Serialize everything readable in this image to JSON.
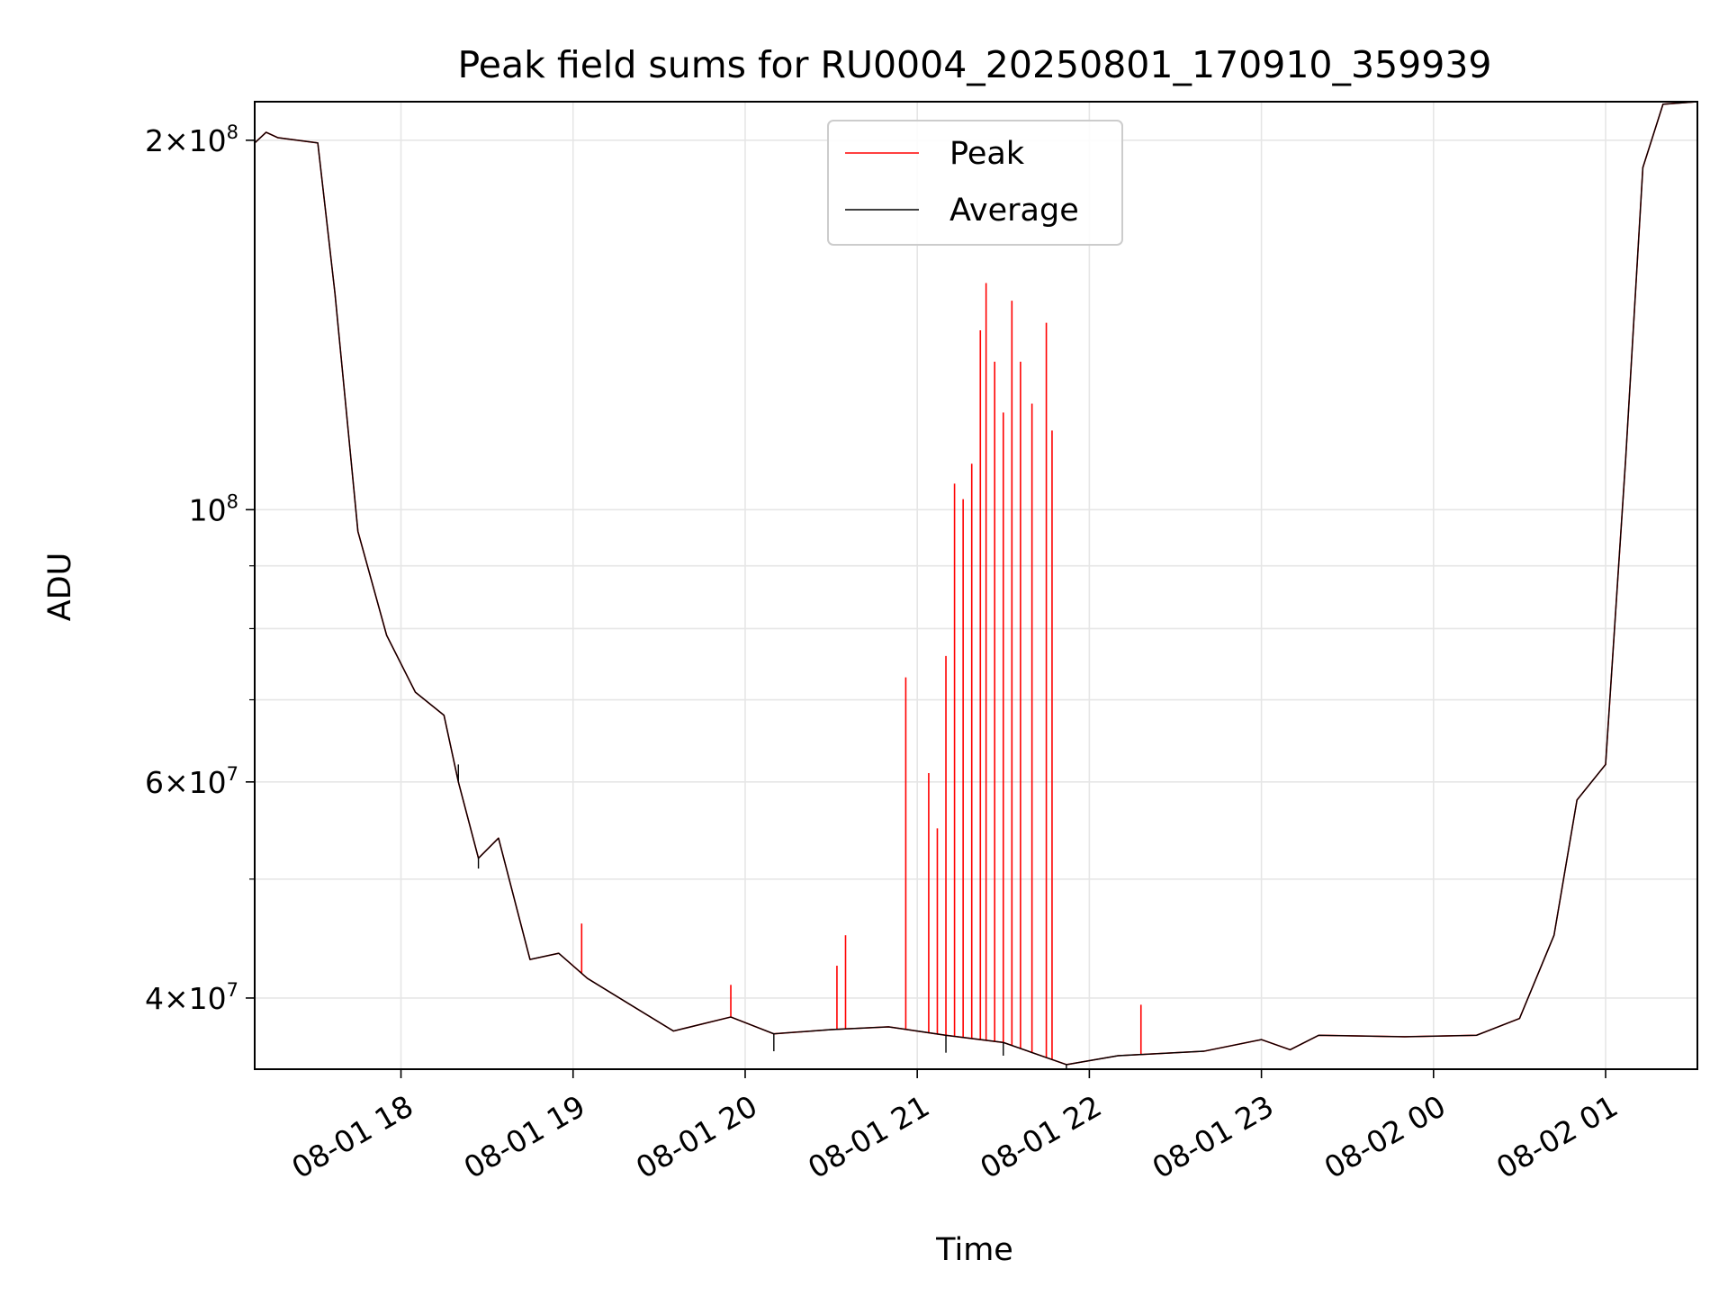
{
  "chart_data": {
    "type": "line",
    "title": "Peak field sums for RU0004_20250801_170910_359939",
    "xlabel": "Time",
    "ylabel": "ADU",
    "yscale": "log",
    "ylim": [
      35000000,
      215000000
    ],
    "xlim": [
      "2025-08-01 17:09",
      "2025-08-02 01:32"
    ],
    "grid": true,
    "legend_position": "upper center",
    "x_ticks": [
      "08-01 18",
      "08-01 19",
      "08-01 20",
      "08-01 21",
      "08-01 22",
      "08-01 23",
      "08-02 00",
      "08-02 01"
    ],
    "y_ticks": [
      {
        "value": 40000000,
        "label_mantissa": "4",
        "label_base": "10",
        "label_exp": "7"
      },
      {
        "value": 60000000,
        "label_mantissa": "6",
        "label_base": "10",
        "label_exp": "7"
      },
      {
        "value": 100000000,
        "label_mantissa": "",
        "label_base": "10",
        "label_exp": "8"
      },
      {
        "value": 200000000,
        "label_mantissa": "2",
        "label_base": "10",
        "label_exp": "8"
      }
    ],
    "series": [
      {
        "name": "Peak",
        "color": "#ff0000",
        "baseline": [
          [
            "2025-08-01 17:09",
            199000000
          ],
          [
            "2025-08-01 17:13",
            203000000
          ],
          [
            "2025-08-01 17:17",
            201000000
          ],
          [
            "2025-08-01 17:31",
            199000000
          ],
          [
            "2025-08-01 17:37",
            150000000
          ],
          [
            "2025-08-01 17:45",
            96000000
          ],
          [
            "2025-08-01 17:55",
            79000000
          ],
          [
            "2025-08-01 18:05",
            71000000
          ],
          [
            "2025-08-01 18:15",
            68000000
          ],
          [
            "2025-08-01 18:20",
            60000000
          ],
          [
            "2025-08-01 18:27",
            52000000
          ],
          [
            "2025-08-01 18:34",
            54000000
          ],
          [
            "2025-08-01 18:45",
            43000000
          ],
          [
            "2025-08-01 18:55",
            43500000
          ],
          [
            "2025-08-01 19:05",
            41500000
          ],
          [
            "2025-08-01 19:20",
            39500000
          ],
          [
            "2025-08-01 19:35",
            37600000
          ],
          [
            "2025-08-01 19:55",
            38600000
          ],
          [
            "2025-08-01 20:10",
            37400000
          ],
          [
            "2025-08-01 20:30",
            37700000
          ],
          [
            "2025-08-01 20:50",
            37900000
          ],
          [
            "2025-08-01 21:10",
            37300000
          ],
          [
            "2025-08-01 21:30",
            36800000
          ],
          [
            "2025-08-01 21:52",
            35300000
          ],
          [
            "2025-08-01 22:10",
            35900000
          ],
          [
            "2025-08-01 22:40",
            36200000
          ],
          [
            "2025-08-01 23:00",
            37000000
          ],
          [
            "2025-08-01 23:10",
            36300000
          ],
          [
            "2025-08-01 23:20",
            37300000
          ],
          [
            "2025-08-01 23:50",
            37200000
          ],
          [
            "2025-08-02 00:15",
            37300000
          ],
          [
            "2025-08-02 00:30",
            38500000
          ],
          [
            "2025-08-02 00:42",
            45000000
          ],
          [
            "2025-08-02 00:50",
            58000000
          ],
          [
            "2025-08-02 01:00",
            62000000
          ],
          [
            "2025-08-02 01:07",
            110000000
          ],
          [
            "2025-08-02 01:13",
            190000000
          ],
          [
            "2025-08-02 01:20",
            214000000
          ],
          [
            "2025-08-02 01:32",
            215000000
          ]
        ],
        "spikes": [
          [
            "2025-08-01 19:03",
            46000000
          ],
          [
            "2025-08-01 19:55",
            41000000
          ],
          [
            "2025-08-01 20:32",
            42500000
          ],
          [
            "2025-08-01 20:35",
            45000000
          ],
          [
            "2025-08-01 20:56",
            73000000
          ],
          [
            "2025-08-01 21:04",
            61000000
          ],
          [
            "2025-08-01 21:07",
            55000000
          ],
          [
            "2025-08-01 21:10",
            76000000
          ],
          [
            "2025-08-01 21:13",
            105000000
          ],
          [
            "2025-08-01 21:16",
            102000000
          ],
          [
            "2025-08-01 21:19",
            109000000
          ],
          [
            "2025-08-01 21:22",
            140000000
          ],
          [
            "2025-08-01 21:24",
            153000000
          ],
          [
            "2025-08-01 21:27",
            132000000
          ],
          [
            "2025-08-01 21:30",
            120000000
          ],
          [
            "2025-08-01 21:33",
            148000000
          ],
          [
            "2025-08-01 21:36",
            132000000
          ],
          [
            "2025-08-01 21:40",
            122000000
          ],
          [
            "2025-08-01 21:45",
            142000000
          ],
          [
            "2025-08-01 21:47",
            116000000
          ],
          [
            "2025-08-01 22:18",
            39500000
          ]
        ]
      },
      {
        "name": "Average",
        "color": "#000000",
        "baseline": [
          [
            "2025-08-01 17:09",
            199000000
          ],
          [
            "2025-08-01 17:13",
            203000000
          ],
          [
            "2025-08-01 17:17",
            201000000
          ],
          [
            "2025-08-01 17:31",
            199000000
          ],
          [
            "2025-08-01 17:37",
            150000000
          ],
          [
            "2025-08-01 17:45",
            96000000
          ],
          [
            "2025-08-01 17:55",
            79000000
          ],
          [
            "2025-08-01 18:05",
            71000000
          ],
          [
            "2025-08-01 18:15",
            68000000
          ],
          [
            "2025-08-01 18:20",
            60000000
          ],
          [
            "2025-08-01 18:27",
            52000000
          ],
          [
            "2025-08-01 18:34",
            54000000
          ],
          [
            "2025-08-01 18:45",
            43000000
          ],
          [
            "2025-08-01 18:55",
            43500000
          ],
          [
            "2025-08-01 19:05",
            41500000
          ],
          [
            "2025-08-01 19:20",
            39500000
          ],
          [
            "2025-08-01 19:35",
            37600000
          ],
          [
            "2025-08-01 19:55",
            38600000
          ],
          [
            "2025-08-01 20:10",
            37400000
          ],
          [
            "2025-08-01 20:30",
            37700000
          ],
          [
            "2025-08-01 20:50",
            37900000
          ],
          [
            "2025-08-01 21:10",
            37300000
          ],
          [
            "2025-08-01 21:30",
            36800000
          ],
          [
            "2025-08-01 21:52",
            35300000
          ],
          [
            "2025-08-01 22:10",
            35900000
          ],
          [
            "2025-08-01 22:40",
            36200000
          ],
          [
            "2025-08-01 23:00",
            37000000
          ],
          [
            "2025-08-01 23:10",
            36300000
          ],
          [
            "2025-08-01 23:20",
            37300000
          ],
          [
            "2025-08-01 23:50",
            37200000
          ],
          [
            "2025-08-02 00:15",
            37300000
          ],
          [
            "2025-08-02 00:30",
            38500000
          ],
          [
            "2025-08-02 00:42",
            45000000
          ],
          [
            "2025-08-02 00:50",
            58000000
          ],
          [
            "2025-08-02 01:00",
            62000000
          ],
          [
            "2025-08-02 01:07",
            110000000
          ],
          [
            "2025-08-02 01:13",
            190000000
          ],
          [
            "2025-08-02 01:20",
            214000000
          ],
          [
            "2025-08-02 01:32",
            215000000
          ]
        ],
        "dips": [
          [
            "2025-08-01 18:20",
            62000000
          ],
          [
            "2025-08-01 18:27",
            51000000
          ],
          [
            "2025-08-01 20:10",
            36200000
          ],
          [
            "2025-08-01 21:10",
            36100000
          ],
          [
            "2025-08-01 21:30",
            35900000
          ],
          [
            "2025-08-01 21:52",
            34800000
          ]
        ]
      }
    ]
  }
}
